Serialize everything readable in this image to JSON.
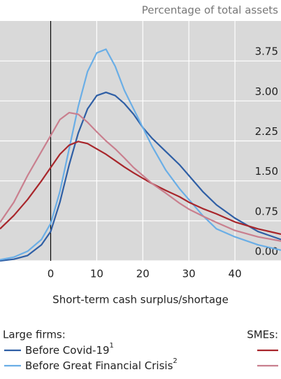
{
  "chart_data": {
    "type": "line",
    "y_label": "Percentage of total assets",
    "x_label": "Short-term cash surplus/shortage",
    "x": [
      -11,
      -8,
      -5,
      -2,
      0,
      2,
      4,
      6,
      8,
      10,
      12,
      14,
      16,
      18,
      20,
      22,
      25,
      28,
      30,
      33,
      36,
      40,
      45,
      50
    ],
    "groups": [
      "Large firms:",
      "SMEs:"
    ],
    "series": [
      {
        "name": "Before Covid-19",
        "note": "1",
        "group": 0,
        "color": "#2f5fa5",
        "values": [
          0.0,
          0.03,
          0.1,
          0.3,
          0.55,
          1.1,
          1.8,
          2.4,
          2.85,
          3.1,
          3.16,
          3.1,
          2.95,
          2.75,
          2.5,
          2.3,
          2.05,
          1.8,
          1.6,
          1.3,
          1.05,
          0.8,
          0.55,
          0.4
        ]
      },
      {
        "name": "Before Great Financial Crisis",
        "note": "2",
        "group": 0,
        "color": "#6aaee6",
        "values": [
          0.02,
          0.07,
          0.18,
          0.4,
          0.7,
          1.3,
          2.1,
          2.9,
          3.55,
          3.9,
          3.97,
          3.65,
          3.2,
          2.85,
          2.5,
          2.15,
          1.7,
          1.35,
          1.15,
          0.85,
          0.6,
          0.45,
          0.3,
          0.2
        ]
      },
      {
        "group": 1,
        "color": "#a8262b",
        "values": [
          0.6,
          0.85,
          1.15,
          1.5,
          1.75,
          2.0,
          2.17,
          2.24,
          2.2,
          2.1,
          2.0,
          1.88,
          1.76,
          1.65,
          1.55,
          1.45,
          1.32,
          1.2,
          1.1,
          0.98,
          0.88,
          0.73,
          0.6,
          0.5
        ]
      },
      {
        "group": 1,
        "color": "#c97f8e",
        "values": [
          0.72,
          1.1,
          1.6,
          2.05,
          2.35,
          2.65,
          2.78,
          2.75,
          2.6,
          2.42,
          2.25,
          2.1,
          1.93,
          1.75,
          1.6,
          1.45,
          1.27,
          1.08,
          0.97,
          0.84,
          0.72,
          0.57,
          0.45,
          0.37
        ]
      }
    ],
    "xlim": [
      -11,
      50
    ],
    "ylim": [
      0,
      4.5
    ],
    "xticks": [
      0,
      10,
      20,
      30,
      40
    ],
    "yticks": [
      {
        "value": 0,
        "label": "0.00"
      },
      0.75,
      {
        "value": 1.5,
        "label": "1.50"
      },
      2.25,
      {
        "value": 3,
        "label": "3.00"
      },
      3.75
    ],
    "grid": true
  }
}
